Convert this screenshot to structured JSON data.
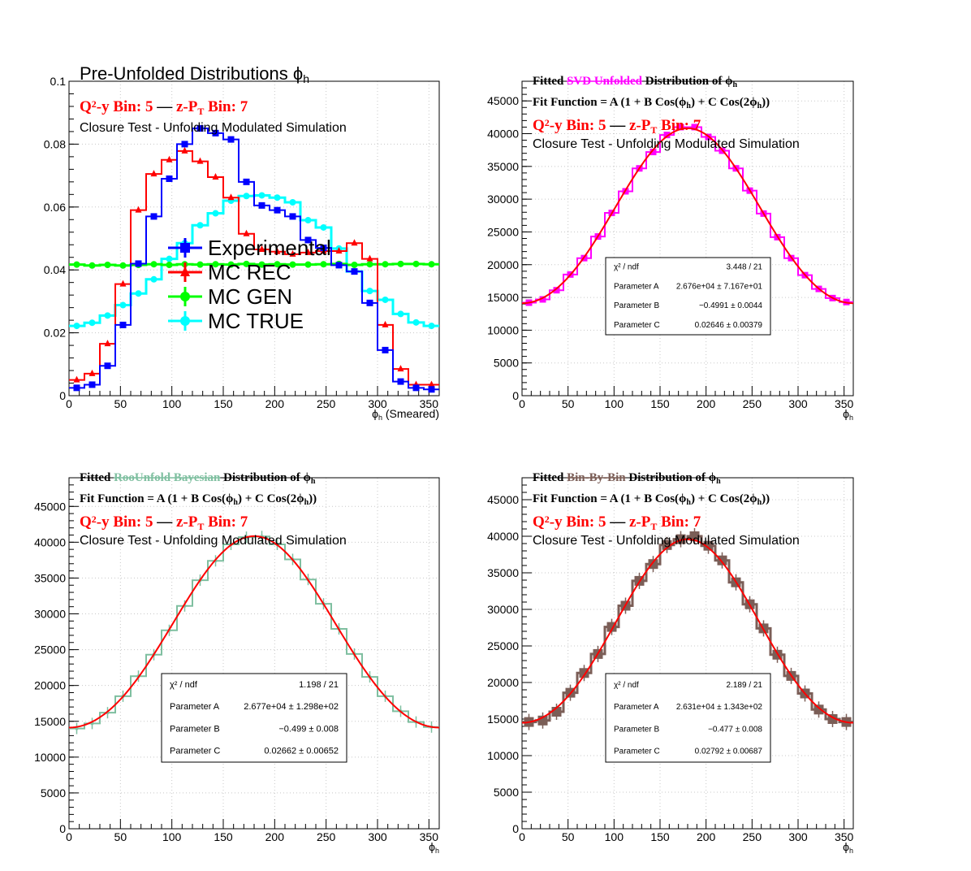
{
  "colors": {
    "experimental": "#0000ff",
    "mc_rec": "#ff0000",
    "mc_gen": "#00ff00",
    "mc_true": "#00ffff",
    "svd": "#ff00ff",
    "bayes": "#7fbfa0",
    "binbybin": "#7b5e57",
    "fit": "#ff0000",
    "grid": "#c8c8c8"
  },
  "chart_data": [
    {
      "id": "pre_unfolded",
      "type": "line",
      "title": "Pre-Unfolded Distributions ϕ",
      "title_sub": "h",
      "line1": {
        "q2y": "Q",
        "sup2": "2",
        "q2y_rest": "-y Bin: 5",
        "dash": "—",
        "zpt": "z-P",
        "zpt_sub": "T",
        "zpt_rest": " Bin: 7"
      },
      "line2": "Closure Test - Unfolding Modulated Simulation",
      "xlabel": "ϕ",
      "xlabel_sub": "h",
      "xlabel_rest": " (Smeared)",
      "xlim": [
        0,
        360
      ],
      "ylim": [
        0,
        0.1
      ],
      "xticks": [
        0,
        50,
        100,
        150,
        200,
        250,
        300,
        350
      ],
      "yticks": [
        0,
        0.02,
        0.04,
        0.06,
        0.08,
        0.1
      ],
      "ytick_labels": [
        "0",
        "0.02",
        "0.04",
        "0.06",
        "0.08",
        "0.1"
      ],
      "grid": true,
      "legend_position": "center",
      "legend": [
        "Experimental",
        "MC REC",
        "MC GEN",
        "MC TRUE"
      ],
      "bin_centers": [
        7.5,
        22.5,
        37.5,
        52.5,
        67.5,
        82.5,
        97.5,
        112.5,
        127.5,
        142.5,
        157.5,
        172.5,
        187.5,
        202.5,
        217.5,
        232.5,
        247.5,
        262.5,
        277.5,
        292.5,
        307.5,
        322.5,
        337.5,
        352.5
      ],
      "series": [
        {
          "name": "Experimental",
          "color_key": "experimental",
          "marker": "square",
          "values": [
            0.0025,
            0.0035,
            0.0095,
            0.0225,
            0.042,
            0.057,
            0.069,
            0.08,
            0.085,
            0.0835,
            0.0815,
            0.068,
            0.0605,
            0.059,
            0.057,
            0.0495,
            0.047,
            0.0415,
            0.0395,
            0.0295,
            0.0145,
            0.0045,
            0.0025,
            0.002
          ]
        },
        {
          "name": "MC REC",
          "color_key": "mc_rec",
          "marker": "triangle",
          "values": [
            0.005,
            0.007,
            0.0165,
            0.0355,
            0.059,
            0.0705,
            0.075,
            0.0778,
            0.0745,
            0.0695,
            0.063,
            0.0515,
            0.0465,
            0.0458,
            0.045,
            0.0455,
            0.046,
            0.046,
            0.0485,
            0.0435,
            0.0225,
            0.0085,
            0.0035,
            0.0035
          ]
        },
        {
          "name": "MC GEN",
          "color_key": "mc_gen",
          "marker": "circle",
          "values": [
            0.0417,
            0.0414,
            0.0416,
            0.0414,
            0.0416,
            0.0418,
            0.0416,
            0.0418,
            0.0417,
            0.0418,
            0.0417,
            0.0419,
            0.0417,
            0.0418,
            0.0417,
            0.0417,
            0.0418,
            0.0419,
            0.0416,
            0.0418,
            0.0418,
            0.0419,
            0.0419,
            0.0418
          ]
        },
        {
          "name": "MC TRUE",
          "color_key": "mc_true",
          "marker": "circle",
          "values": [
            0.0222,
            0.0232,
            0.0255,
            0.0288,
            0.0325,
            0.037,
            0.0435,
            0.0485,
            0.0542,
            0.058,
            0.062,
            0.0635,
            0.0637,
            0.063,
            0.0615,
            0.0558,
            0.0535,
            0.0468,
            0.0395,
            0.0333,
            0.0305,
            0.026,
            0.0233,
            0.0222
          ]
        }
      ]
    },
    {
      "id": "svd",
      "type": "line",
      "title_parts": {
        "pre": "Fitted ",
        "method": "SVD Unfolded",
        "post": " Distribution of  ϕ",
        "sub": "h"
      },
      "method_color_key": "svd",
      "fit_function": {
        "a": "Fit Function = A (1 + B Cos(ϕ",
        "sub1": "h",
        "b": ") + C Cos(2ϕ",
        "sub2": "h",
        "c": "))"
      },
      "line1": {
        "q2y": "Q",
        "sup2": "2",
        "q2y_rest": "-y Bin: 5",
        "dash": "—",
        "zpt": "z-P",
        "zpt_sub": "T",
        "zpt_rest": " Bin: 7"
      },
      "line2": "Closure Test - Unfolding Modulated Simulation",
      "xlabel": "ϕ",
      "xlabel_sub": "h",
      "xlim": [
        0,
        360
      ],
      "ylim": [
        0,
        48000
      ],
      "xticks": [
        0,
        50,
        100,
        150,
        200,
        250,
        300,
        350
      ],
      "yticks": [
        0,
        5000,
        10000,
        15000,
        20000,
        25000,
        30000,
        35000,
        40000,
        45000
      ],
      "ytick_labels": [
        "0",
        "5000",
        "10000",
        "15000",
        "20000",
        "25000",
        "30000",
        "35000",
        "40000",
        "45000"
      ],
      "grid": true,
      "fit": {
        "A": 26760,
        "B": -0.4991,
        "C": 0.02646
      },
      "stats": [
        [
          "χ² / ndf",
          "3.448 / 21"
        ],
        [
          "Parameter A",
          "2.676e+04 ± 7.167e+01"
        ],
        [
          "Parameter B",
          "−0.4991 ± 0.0044"
        ],
        [
          "Parameter C",
          "0.02646 ± 0.00379"
        ]
      ],
      "bin_centers": [
        7.5,
        22.5,
        37.5,
        52.5,
        67.5,
        82.5,
        97.5,
        112.5,
        127.5,
        142.5,
        157.5,
        172.5,
        187.5,
        202.5,
        217.5,
        232.5,
        247.5,
        262.5,
        277.5,
        292.5,
        307.5,
        322.5,
        337.5,
        352.5
      ],
      "values": [
        14200,
        14700,
        16100,
        18500,
        21000,
        24300,
        27900,
        31200,
        34700,
        37200,
        39800,
        41000,
        41000,
        39500,
        37400,
        34700,
        31300,
        27800,
        24200,
        21000,
        18400,
        16300,
        14900,
        14300
      ]
    },
    {
      "id": "bayes",
      "type": "line",
      "title_parts": {
        "pre": "Fitted ",
        "method": "RooUnfold Bayesian",
        "post": " Distribution of  ϕ",
        "sub": "h"
      },
      "method_color_key": "bayes",
      "fit_function": {
        "a": "Fit Function = A (1 + B Cos(ϕ",
        "sub1": "h",
        "b": ") + C Cos(2ϕ",
        "sub2": "h",
        "c": "))"
      },
      "line1": {
        "q2y": "Q",
        "sup2": "2",
        "q2y_rest": "-y Bin: 5",
        "dash": "—",
        "zpt": "z-P",
        "zpt_sub": "T",
        "zpt_rest": " Bin: 7"
      },
      "line2": "Closure Test - Unfolding Modulated Simulation",
      "xlabel": "ϕ",
      "xlabel_sub": "h",
      "xlim": [
        0,
        360
      ],
      "ylim": [
        0,
        49000
      ],
      "xticks": [
        0,
        50,
        100,
        150,
        200,
        250,
        300,
        350
      ],
      "yticks": [
        0,
        5000,
        10000,
        15000,
        20000,
        25000,
        30000,
        35000,
        40000,
        45000
      ],
      "ytick_labels": [
        "0",
        "5000",
        "10000",
        "15000",
        "20000",
        "25000",
        "30000",
        "35000",
        "40000",
        "45000"
      ],
      "grid": true,
      "fit": {
        "A": 26770,
        "B": -0.499,
        "C": 0.02662
      },
      "stats": [
        [
          "χ² / ndf",
          "1.198 / 21"
        ],
        [
          "Parameter A",
          "2.677e+04 ± 1.298e+02"
        ],
        [
          "Parameter B",
          "−0.499 ± 0.008"
        ],
        [
          "Parameter C",
          "0.02662 ± 0.00652"
        ]
      ],
      "bin_centers": [
        7.5,
        22.5,
        37.5,
        52.5,
        67.5,
        82.5,
        97.5,
        112.5,
        127.5,
        142.5,
        157.5,
        172.5,
        187.5,
        202.5,
        217.5,
        232.5,
        247.5,
        262.5,
        277.5,
        292.5,
        307.5,
        322.5,
        337.5,
        352.5
      ],
      "values": [
        14000,
        14700,
        16200,
        18500,
        21300,
        24300,
        27700,
        31100,
        34700,
        37400,
        39700,
        40700,
        40800,
        39700,
        37600,
        34800,
        31400,
        27900,
        24400,
        21200,
        18500,
        16400,
        14900,
        14200
      ]
    },
    {
      "id": "binbybin",
      "type": "line",
      "title_parts": {
        "pre": "Fitted ",
        "method": "Bin-By-Bin",
        "post": " Distribution of  ϕ",
        "sub": "h"
      },
      "method_color_key": "binbybin",
      "fit_function": {
        "a": "Fit Function = A (1 + B Cos(ϕ",
        "sub1": "h",
        "b": ") + C Cos(2ϕ",
        "sub2": "h",
        "c": "))"
      },
      "line1": {
        "q2y": "Q",
        "sup2": "2",
        "q2y_rest": "-y Bin: 5",
        "dash": "—",
        "zpt": "z-P",
        "zpt_sub": "T",
        "zpt_rest": " Bin: 7"
      },
      "line2": "Closure Test - Unfolding Modulated Simulation",
      "xlabel": "ϕ",
      "xlabel_sub": "h",
      "xlim": [
        0,
        360
      ],
      "ylim": [
        0,
        48000
      ],
      "xticks": [
        0,
        50,
        100,
        150,
        200,
        250,
        300,
        350
      ],
      "yticks": [
        0,
        5000,
        10000,
        15000,
        20000,
        25000,
        30000,
        35000,
        40000,
        45000
      ],
      "ytick_labels": [
        "0",
        "5000",
        "10000",
        "15000",
        "20000",
        "25000",
        "30000",
        "35000",
        "40000",
        "45000"
      ],
      "grid": true,
      "fit": {
        "A": 26310,
        "B": -0.477,
        "C": 0.02792
      },
      "stats": [
        [
          "χ² / ndf",
          "2.189 / 21"
        ],
        [
          "Parameter A",
          "2.631e+04 ± 1.343e+02"
        ],
        [
          "Parameter B",
          "−0.477 ± 0.008"
        ],
        [
          "Parameter C",
          "0.02792 ± 0.00687"
        ]
      ],
      "bin_centers": [
        7.5,
        22.5,
        37.5,
        52.5,
        67.5,
        82.5,
        97.5,
        112.5,
        127.5,
        142.5,
        157.5,
        172.5,
        187.5,
        202.5,
        217.5,
        232.5,
        247.5,
        262.5,
        277.5,
        292.5,
        307.5,
        322.5,
        337.5,
        352.5
      ],
      "values": [
        14600,
        14800,
        16000,
        18600,
        21300,
        23900,
        27600,
        30500,
        33900,
        36200,
        38800,
        39600,
        40000,
        38700,
        36700,
        33700,
        30700,
        27400,
        23800,
        20900,
        18500,
        16300,
        15000,
        14600
      ]
    }
  ]
}
